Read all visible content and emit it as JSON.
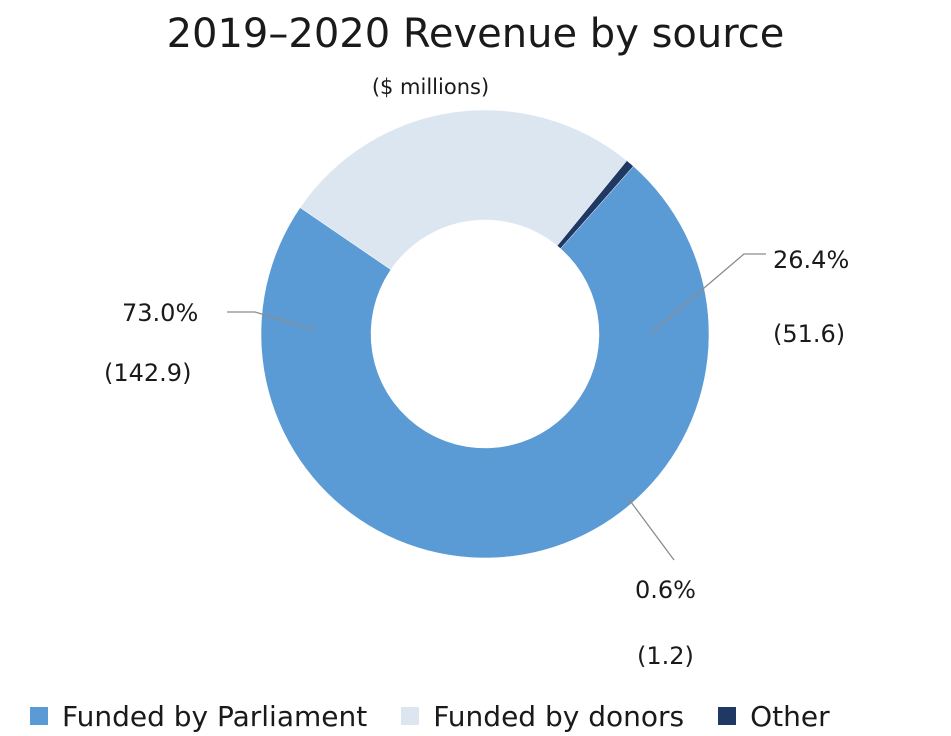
{
  "chart_data": {
    "type": "pie",
    "title": "2019–2020 Revenue by source",
    "subtitle": "($ millions)",
    "donut": true,
    "legend_position": "bottom",
    "slices": [
      {
        "name": "Funded by Parliament",
        "value": 142.9,
        "percent": 73.0,
        "percent_label": "73.0%",
        "value_label": "(142.9)",
        "color": "#5b9bd5"
      },
      {
        "name": "Funded by donors",
        "value": 51.6,
        "percent": 26.4,
        "percent_label": "26.4%",
        "value_label": "(51.6)",
        "color": "#dce6f1"
      },
      {
        "name": "Other",
        "value": 1.2,
        "percent": 0.6,
        "percent_label": "0.6%",
        "value_label": "(1.2)",
        "color": "#1f3864"
      }
    ]
  }
}
